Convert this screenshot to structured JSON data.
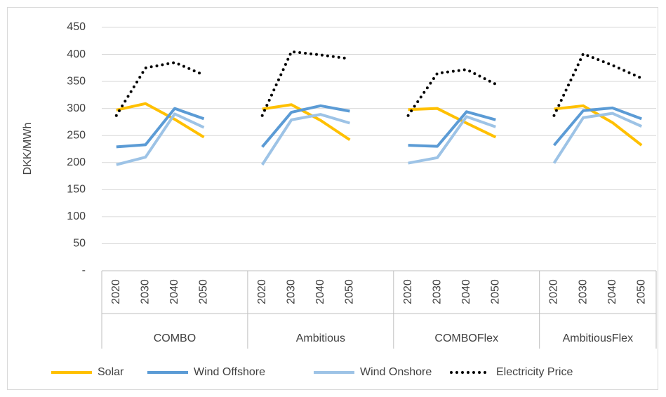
{
  "chart_data": {
    "type": "line",
    "y_label": "DKK/MWh",
    "categories": [
      "2020",
      "2030",
      "2040",
      "2050",
      null,
      "2020",
      "2030",
      "2040",
      "2050",
      null,
      "2020",
      "2030",
      "2040",
      "2050",
      null,
      "2020",
      "2030",
      "2040",
      "2050"
    ],
    "groups": [
      "COMBO",
      "Ambitious",
      "COMBOFlex",
      "AmbitiousFlex"
    ],
    "series": [
      {
        "name": "Solar",
        "color": "#ffc000",
        "style": "solid",
        "values": [
          297,
          309,
          280,
          247,
          null,
          299,
          307,
          278,
          242,
          null,
          298,
          300,
          273,
          247,
          null,
          299,
          305,
          274,
          232
        ]
      },
      {
        "name": "Wind Offshore",
        "color": "#5b9bd5",
        "style": "solid",
        "values": [
          229,
          233,
          300,
          281,
          null,
          229,
          293,
          305,
          295,
          null,
          232,
          230,
          294,
          279,
          null,
          232,
          296,
          301,
          281
        ]
      },
      {
        "name": "Wind Onshore",
        "color": "#9dc3e6",
        "style": "solid",
        "values": [
          196,
          210,
          290,
          265,
          null,
          196,
          279,
          289,
          273,
          null,
          199,
          209,
          285,
          266,
          null,
          199,
          283,
          291,
          267
        ]
      },
      {
        "name": "Electricity Price",
        "color": "#000000",
        "style": "dotted",
        "values": [
          287,
          375,
          385,
          362,
          null,
          287,
          405,
          399,
          392,
          null,
          287,
          365,
          372,
          345,
          null,
          287,
          401,
          380,
          356
        ]
      }
    ],
    "ylim": [
      0,
      450
    ],
    "yticks": [
      {
        "value": 0,
        "label": "-"
      },
      50,
      100,
      150,
      200,
      250,
      300,
      350,
      400,
      450
    ],
    "grid": true,
    "legend": "bottom"
  }
}
